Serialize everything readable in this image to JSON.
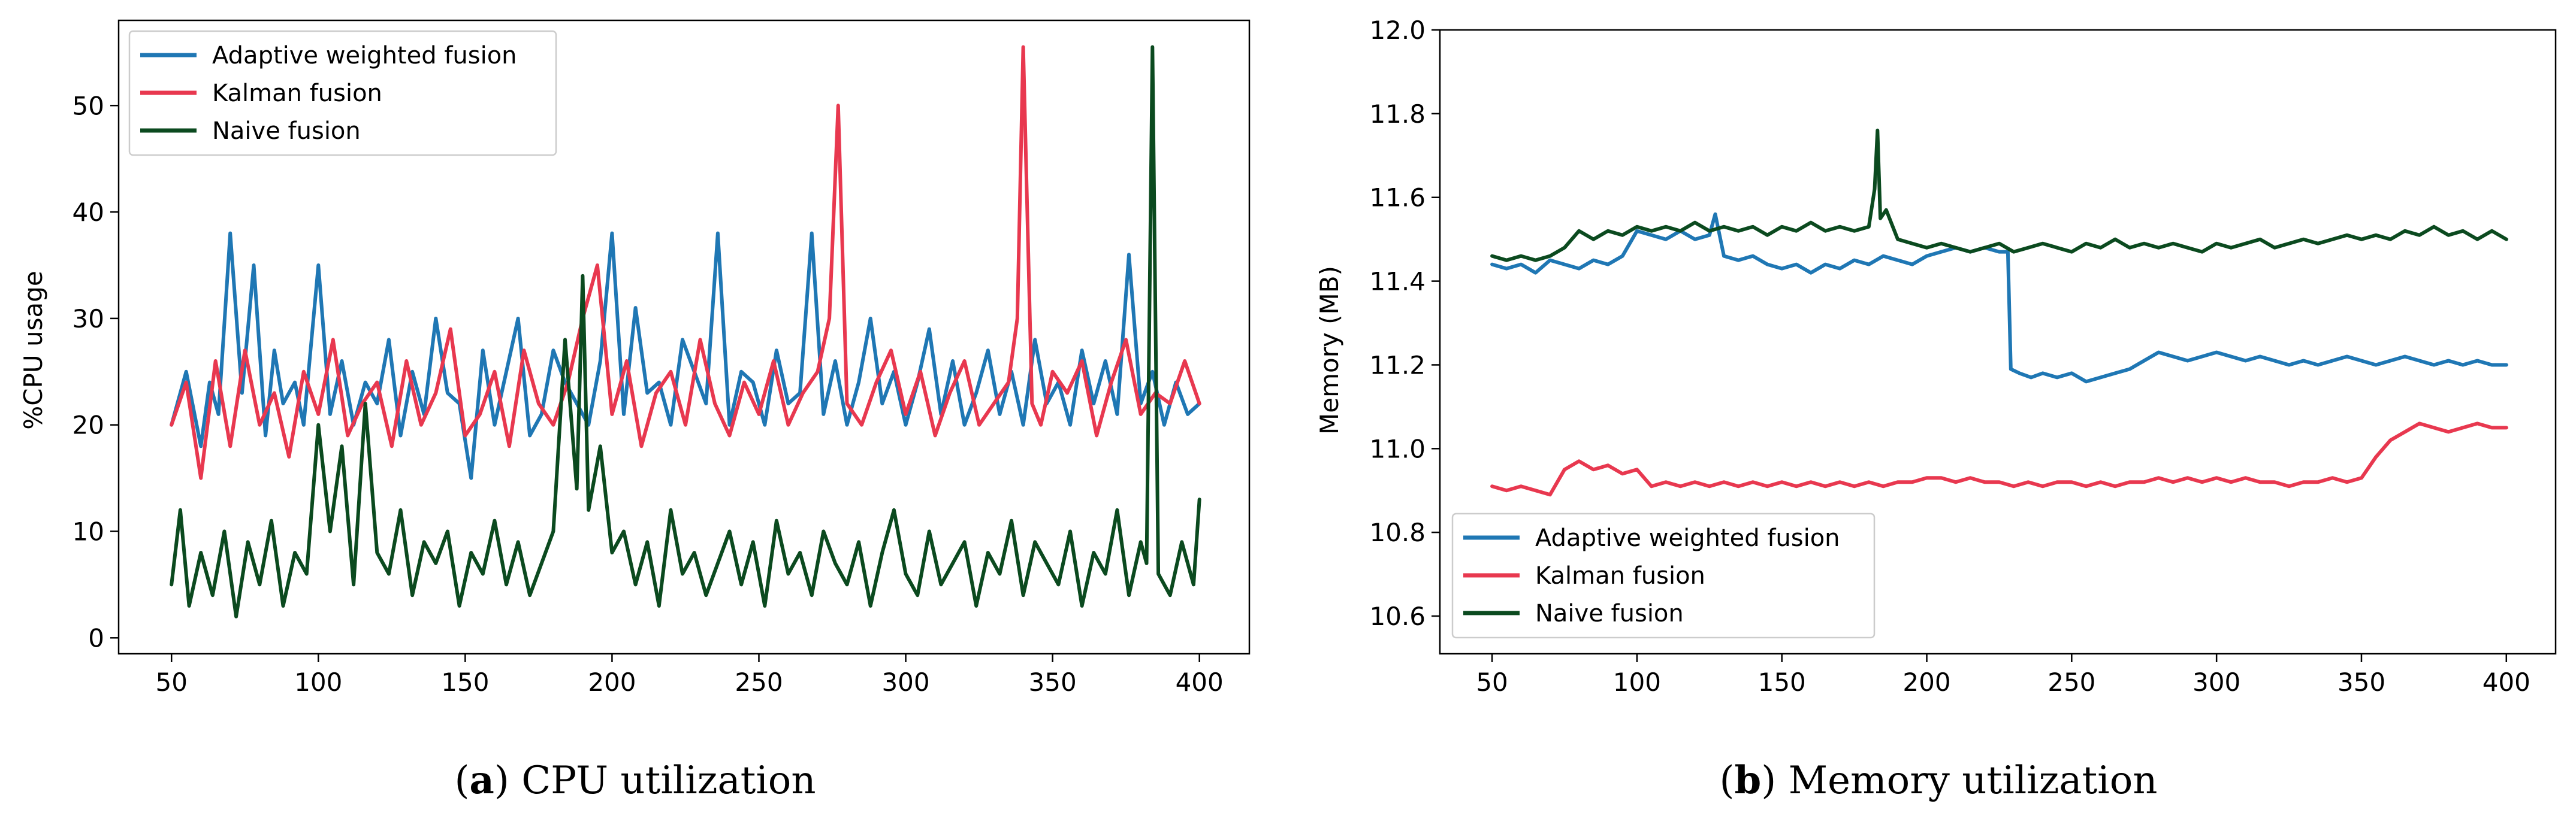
{
  "colors": {
    "adaptive": "#1f77b4",
    "kalman": "#e8384f",
    "naive": "#0b4a1f"
  },
  "captions": [
    {
      "letter": "a",
      "text": "CPU utilization"
    },
    {
      "letter": "b",
      "text": "Memory utilization"
    }
  ],
  "chart_data": [
    {
      "type": "line",
      "title": "",
      "xlabel": "",
      "ylabel": "%CPU usage",
      "xlim": [
        32,
        417
      ],
      "ylim": [
        -1.5,
        58
      ],
      "xticks": [
        50,
        100,
        150,
        200,
        250,
        300,
        350,
        400
      ],
      "yticks": [
        0,
        10,
        20,
        30,
        40,
        50
      ],
      "legend_position": "top-left",
      "series": [
        {
          "name": "Adaptive weighted fusion",
          "color_key": "adaptive",
          "x": [
            50,
            55,
            60,
            63,
            66,
            70,
            74,
            78,
            82,
            85,
            88,
            92,
            95,
            100,
            104,
            108,
            112,
            116,
            120,
            124,
            128,
            132,
            136,
            140,
            144,
            148,
            152,
            156,
            160,
            164,
            168,
            172,
            176,
            180,
            184,
            188,
            192,
            196,
            200,
            204,
            208,
            212,
            216,
            220,
            224,
            228,
            232,
            236,
            240,
            244,
            248,
            252,
            256,
            260,
            264,
            268,
            272,
            276,
            280,
            284,
            288,
            292,
            296,
            300,
            304,
            308,
            312,
            316,
            320,
            324,
            328,
            332,
            336,
            340,
            344,
            348,
            352,
            356,
            360,
            364,
            368,
            372,
            376,
            380,
            384,
            388,
            392,
            396,
            400
          ],
          "y": [
            20,
            25,
            18,
            24,
            21,
            38,
            23,
            35,
            19,
            27,
            22,
            24,
            20,
            35,
            21,
            26,
            20,
            24,
            22,
            28,
            19,
            25,
            21,
            30,
            23,
            22,
            15,
            27,
            20,
            25,
            30,
            19,
            21,
            27,
            24,
            22,
            20,
            26,
            38,
            21,
            31,
            23,
            24,
            20,
            28,
            25,
            22,
            38,
            20,
            25,
            24,
            20,
            27,
            22,
            23,
            38,
            21,
            26,
            20,
            24,
            30,
            22,
            25,
            20,
            24,
            29,
            21,
            26,
            20,
            23,
            27,
            21,
            25,
            20,
            28,
            22,
            24,
            20,
            27,
            22,
            26,
            21,
            36,
            22,
            25,
            20,
            24,
            21,
            22
          ]
        },
        {
          "name": "Kalman fusion",
          "color_key": "kalman",
          "x": [
            50,
            55,
            60,
            65,
            70,
            75,
            80,
            85,
            90,
            95,
            100,
            105,
            110,
            115,
            120,
            125,
            130,
            135,
            140,
            145,
            150,
            155,
            160,
            165,
            170,
            175,
            180,
            185,
            190,
            195,
            200,
            205,
            210,
            215,
            220,
            225,
            230,
            235,
            240,
            245,
            250,
            255,
            260,
            265,
            270,
            274,
            277,
            280,
            285,
            290,
            295,
            300,
            305,
            310,
            315,
            320,
            325,
            330,
            335,
            338,
            340,
            343,
            346,
            350,
            355,
            360,
            365,
            370,
            375,
            380,
            385,
            390,
            395,
            400
          ],
          "y": [
            20,
            24,
            15,
            26,
            18,
            27,
            20,
            23,
            17,
            25,
            21,
            28,
            19,
            22,
            24,
            18,
            26,
            20,
            23,
            29,
            19,
            21,
            25,
            18,
            27,
            22,
            20,
            24,
            30,
            35,
            21,
            26,
            18,
            23,
            25,
            20,
            28,
            22,
            19,
            24,
            21,
            26,
            20,
            23,
            25,
            30,
            50,
            22,
            20,
            24,
            27,
            21,
            25,
            19,
            23,
            26,
            20,
            22,
            24,
            30,
            55.5,
            22,
            20,
            25,
            23,
            26,
            19,
            24,
            28,
            21,
            23,
            22,
            26,
            22
          ]
        },
        {
          "name": "Naive  fusion",
          "color_key": "naive",
          "x": [
            50,
            53,
            56,
            60,
            64,
            68,
            72,
            76,
            80,
            84,
            88,
            92,
            96,
            100,
            104,
            108,
            112,
            116,
            120,
            124,
            128,
            132,
            136,
            140,
            144,
            148,
            152,
            156,
            160,
            164,
            168,
            172,
            176,
            180,
            184,
            188,
            190,
            192,
            196,
            200,
            204,
            208,
            212,
            216,
            220,
            224,
            228,
            232,
            236,
            240,
            244,
            248,
            252,
            256,
            260,
            264,
            268,
            272,
            276,
            280,
            284,
            288,
            292,
            296,
            300,
            304,
            308,
            312,
            316,
            320,
            324,
            328,
            332,
            336,
            340,
            344,
            348,
            352,
            356,
            360,
            364,
            368,
            372,
            376,
            380,
            382,
            384,
            386,
            390,
            394,
            398,
            400
          ],
          "y": [
            5,
            12,
            3,
            8,
            4,
            10,
            2,
            9,
            5,
            11,
            3,
            8,
            6,
            20,
            10,
            18,
            5,
            22,
            8,
            6,
            12,
            4,
            9,
            7,
            10,
            3,
            8,
            6,
            11,
            5,
            9,
            4,
            7,
            10,
            28,
            14,
            34,
            12,
            18,
            8,
            10,
            5,
            9,
            3,
            12,
            6,
            8,
            4,
            7,
            10,
            5,
            9,
            3,
            11,
            6,
            8,
            4,
            10,
            7,
            5,
            9,
            3,
            8,
            12,
            6,
            4,
            10,
            5,
            7,
            9,
            3,
            8,
            6,
            11,
            4,
            9,
            7,
            5,
            10,
            3,
            8,
            6,
            12,
            4,
            9,
            7,
            55.5,
            6,
            4,
            9,
            5,
            13
          ]
        }
      ]
    },
    {
      "type": "line",
      "title": "",
      "xlabel": "",
      "ylabel": "Memory (MB)",
      "xlim": [
        32,
        417
      ],
      "ylim": [
        10.51,
        12.0
      ],
      "xticks": [
        50,
        100,
        150,
        200,
        250,
        300,
        350,
        400
      ],
      "yticks": [
        10.6,
        10.8,
        11.0,
        11.2,
        11.4,
        11.6,
        11.8,
        12.0
      ],
      "legend_position": "bottom-left",
      "series": [
        {
          "name": "Adaptive weighted fusion",
          "color_key": "adaptive",
          "x": [
            50,
            55,
            60,
            65,
            70,
            75,
            80,
            85,
            90,
            95,
            100,
            105,
            110,
            115,
            120,
            125,
            127,
            130,
            135,
            140,
            145,
            150,
            155,
            160,
            165,
            170,
            175,
            180,
            185,
            190,
            195,
            200,
            205,
            210,
            215,
            220,
            225,
            228,
            229,
            232,
            236,
            240,
            245,
            250,
            255,
            260,
            265,
            270,
            275,
            280,
            285,
            290,
            295,
            300,
            305,
            310,
            315,
            320,
            325,
            330,
            335,
            340,
            345,
            350,
            355,
            360,
            365,
            370,
            375,
            380,
            385,
            390,
            395,
            400
          ],
          "y": [
            11.44,
            11.43,
            11.44,
            11.42,
            11.45,
            11.44,
            11.43,
            11.45,
            11.44,
            11.46,
            11.52,
            11.51,
            11.5,
            11.52,
            11.5,
            11.51,
            11.56,
            11.46,
            11.45,
            11.46,
            11.44,
            11.43,
            11.44,
            11.42,
            11.44,
            11.43,
            11.45,
            11.44,
            11.46,
            11.45,
            11.44,
            11.46,
            11.47,
            11.48,
            11.47,
            11.48,
            11.47,
            11.47,
            11.19,
            11.18,
            11.17,
            11.18,
            11.17,
            11.18,
            11.16,
            11.17,
            11.18,
            11.19,
            11.21,
            11.23,
            11.22,
            11.21,
            11.22,
            11.23,
            11.22,
            11.21,
            11.22,
            11.21,
            11.2,
            11.21,
            11.2,
            11.21,
            11.22,
            11.21,
            11.2,
            11.21,
            11.22,
            11.21,
            11.2,
            11.21,
            11.2,
            11.21,
            11.2,
            11.2
          ]
        },
        {
          "name": "Kalman fusion",
          "color_key": "kalman",
          "x": [
            50,
            55,
            60,
            65,
            70,
            75,
            80,
            85,
            90,
            95,
            100,
            105,
            110,
            115,
            120,
            125,
            130,
            135,
            140,
            145,
            150,
            155,
            160,
            165,
            170,
            175,
            180,
            185,
            190,
            195,
            200,
            205,
            210,
            215,
            220,
            225,
            230,
            235,
            240,
            245,
            250,
            255,
            260,
            265,
            270,
            275,
            280,
            285,
            290,
            295,
            300,
            305,
            310,
            315,
            320,
            325,
            330,
            335,
            340,
            345,
            350,
            355,
            360,
            365,
            370,
            375,
            380,
            385,
            390,
            395,
            400
          ],
          "y": [
            10.91,
            10.9,
            10.91,
            10.9,
            10.89,
            10.95,
            10.97,
            10.95,
            10.96,
            10.94,
            10.95,
            10.91,
            10.92,
            10.91,
            10.92,
            10.91,
            10.92,
            10.91,
            10.92,
            10.91,
            10.92,
            10.91,
            10.92,
            10.91,
            10.92,
            10.91,
            10.92,
            10.91,
            10.92,
            10.92,
            10.93,
            10.93,
            10.92,
            10.93,
            10.92,
            10.92,
            10.91,
            10.92,
            10.91,
            10.92,
            10.92,
            10.91,
            10.92,
            10.91,
            10.92,
            10.92,
            10.93,
            10.92,
            10.93,
            10.92,
            10.93,
            10.92,
            10.93,
            10.92,
            10.92,
            10.91,
            10.92,
            10.92,
            10.93,
            10.92,
            10.93,
            10.98,
            11.02,
            11.04,
            11.06,
            11.05,
            11.04,
            11.05,
            11.06,
            11.05,
            11.05
          ]
        },
        {
          "name": "Naive  fusion",
          "color_key": "naive",
          "x": [
            50,
            55,
            60,
            65,
            70,
            75,
            80,
            85,
            90,
            95,
            100,
            105,
            110,
            115,
            120,
            125,
            130,
            135,
            140,
            145,
            150,
            155,
            160,
            165,
            170,
            175,
            180,
            182,
            183,
            184,
            186,
            190,
            195,
            200,
            205,
            210,
            215,
            220,
            225,
            230,
            235,
            240,
            245,
            250,
            255,
            260,
            265,
            270,
            275,
            280,
            285,
            290,
            295,
            300,
            305,
            310,
            315,
            320,
            325,
            330,
            335,
            340,
            345,
            350,
            355,
            360,
            365,
            370,
            375,
            380,
            385,
            390,
            395,
            400
          ],
          "y": [
            11.46,
            11.45,
            11.46,
            11.45,
            11.46,
            11.48,
            11.52,
            11.5,
            11.52,
            11.51,
            11.53,
            11.52,
            11.53,
            11.52,
            11.54,
            11.52,
            11.53,
            11.52,
            11.53,
            11.51,
            11.53,
            11.52,
            11.54,
            11.52,
            11.53,
            11.52,
            11.53,
            11.62,
            11.76,
            11.55,
            11.57,
            11.5,
            11.49,
            11.48,
            11.49,
            11.48,
            11.47,
            11.48,
            11.49,
            11.47,
            11.48,
            11.49,
            11.48,
            11.47,
            11.49,
            11.48,
            11.5,
            11.48,
            11.49,
            11.48,
            11.49,
            11.48,
            11.47,
            11.49,
            11.48,
            11.49,
            11.5,
            11.48,
            11.49,
            11.5,
            11.49,
            11.5,
            11.51,
            11.5,
            11.51,
            11.5,
            11.52,
            11.51,
            11.53,
            11.51,
            11.52,
            11.5,
            11.52,
            11.5
          ]
        }
      ]
    }
  ]
}
